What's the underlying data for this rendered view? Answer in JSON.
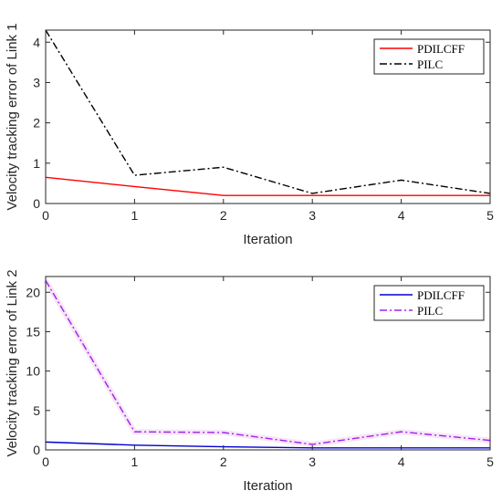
{
  "chart_data": [
    {
      "type": "line",
      "xlabel": "Iteration",
      "ylabel": "Velocity tracking error of Link 1",
      "xlim": [
        0,
        5
      ],
      "ylim": [
        0,
        4.3
      ],
      "xticks": [
        "0",
        "1",
        "2",
        "3",
        "4",
        "5"
      ],
      "yticks": [
        "0",
        "1",
        "2",
        "3",
        "4"
      ],
      "grid": false,
      "legend": "top-right",
      "x": [
        0,
        1,
        2,
        3,
        4,
        5
      ],
      "series": [
        {
          "name": "PDILCFF",
          "values": [
            0.65,
            0.42,
            0.2,
            0.2,
            0.2,
            0.2
          ],
          "color": "#ff0000",
          "dash": "solid"
        },
        {
          "name": "PILC",
          "values": [
            4.3,
            0.7,
            0.9,
            0.25,
            0.58,
            0.25
          ],
          "color": "#000000",
          "dash": "dashdot"
        }
      ]
    },
    {
      "type": "line",
      "xlabel": "Iteration",
      "ylabel": "Velocity tracking error of Link 2",
      "xlim": [
        0,
        5
      ],
      "ylim": [
        0,
        22
      ],
      "xticks": [
        "0",
        "1",
        "2",
        "3",
        "4",
        "5"
      ],
      "yticks": [
        "0",
        "5",
        "10",
        "15",
        "20"
      ],
      "grid": false,
      "legend": "top-right",
      "x": [
        0,
        1,
        2,
        3,
        4,
        5
      ],
      "series": [
        {
          "name": "PDILCFF",
          "values": [
            1.0,
            0.6,
            0.4,
            0.25,
            0.25,
            0.25
          ],
          "color": "#0000cc",
          "dash": "solid"
        },
        {
          "name": "PILC",
          "values": [
            21.5,
            2.3,
            2.2,
            0.7,
            2.3,
            1.2
          ],
          "color": "#a020f0",
          "dash": "dashdot"
        }
      ]
    }
  ]
}
